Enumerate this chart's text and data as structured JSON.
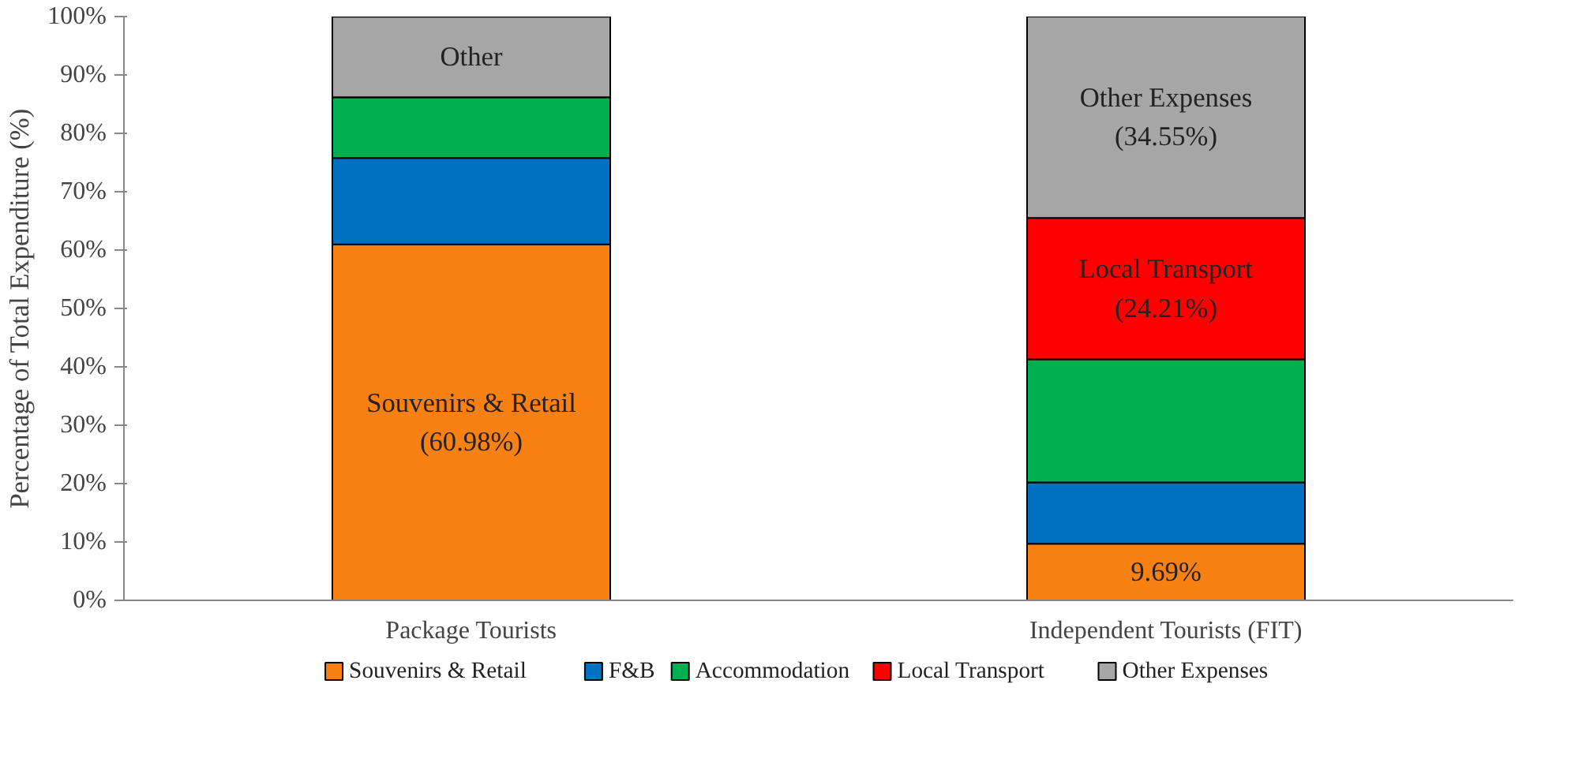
{
  "chart_data": {
    "type": "bar",
    "stacked": true,
    "ylabel": "Percentage of Total Expenditure (%)",
    "categories": [
      "Package Tourists",
      "Independent Tourists (FIT)"
    ],
    "ylim": [
      0,
      100
    ],
    "yticks": [
      {
        "value": 0,
        "label": "0%"
      },
      {
        "value": 10,
        "label": "10%"
      },
      {
        "value": 20,
        "label": "20%"
      },
      {
        "value": 30,
        "label": "30%"
      },
      {
        "value": 40,
        "label": "40%"
      },
      {
        "value": 50,
        "label": "50%"
      },
      {
        "value": 60,
        "label": "60%"
      },
      {
        "value": 70,
        "label": "70%"
      },
      {
        "value": 80,
        "label": "80%"
      },
      {
        "value": 90,
        "label": "90%"
      },
      {
        "value": 100,
        "label": "100%"
      }
    ],
    "grid": false,
    "legend": "bottom",
    "series": [
      {
        "name": "Souvenirs & Retail",
        "color": "#f98013",
        "values": [
          60.98,
          9.69
        ],
        "value_labels": [
          "Souvenirs & Retail\n(60.98%)",
          "9.69%"
        ]
      },
      {
        "name": "F&B",
        "color": "#0070c0",
        "values": [
          14.8,
          10.5
        ],
        "value_labels": [
          null,
          null
        ]
      },
      {
        "name": "Accommodation",
        "color": "#00b050",
        "values": [
          10.4,
          21.1
        ],
        "value_labels": [
          null,
          null
        ]
      },
      {
        "name": "Local Transport",
        "color": "#ff0000",
        "values": [
          0,
          24.21
        ],
        "value_labels": [
          null,
          "Local Transport\n(24.21%)"
        ]
      },
      {
        "name": "Other Expenses",
        "color": "#a6a6a6",
        "values": [
          13.8,
          34.55
        ],
        "value_labels": [
          "Other",
          "Other Expenses\n(34.55%)"
        ]
      }
    ]
  }
}
